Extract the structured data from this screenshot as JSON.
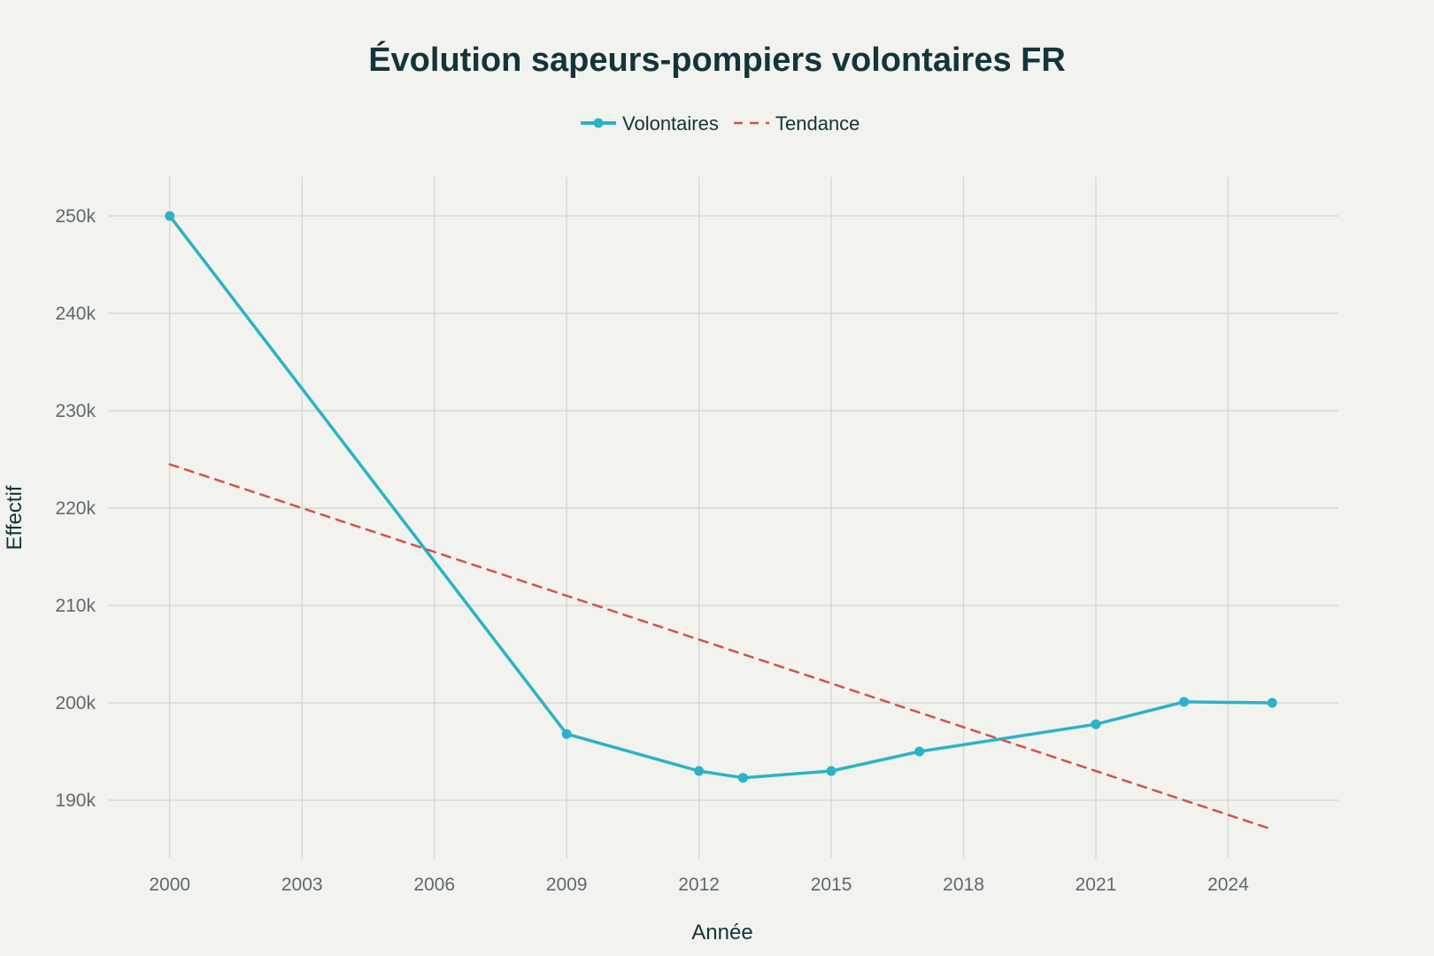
{
  "chart_data": {
    "type": "line",
    "title": "Évolution sapeurs-pompiers volontaires FR",
    "xlabel": "Année",
    "ylabel": "Effectif",
    "xlim": [
      1998.6,
      2026.5
    ],
    "ylim": [
      184,
      254
    ],
    "x_ticks": [
      2000,
      2003,
      2006,
      2009,
      2012,
      2015,
      2018,
      2021,
      2024
    ],
    "y_ticks": [
      190,
      200,
      210,
      220,
      230,
      240,
      250
    ],
    "y_tick_labels": [
      "190k",
      "200k",
      "210k",
      "220k",
      "230k",
      "240k",
      "250k"
    ],
    "grid": true,
    "legend_position": "top-center",
    "series": [
      {
        "name": "Volontaires",
        "style": "solid-markers",
        "color": "#2ab3c6",
        "x": [
          2000,
          2009,
          2012,
          2013,
          2015,
          2017,
          2021,
          2023,
          2025
        ],
        "y": [
          250,
          196.8,
          193,
          192.3,
          193,
          195,
          197.8,
          200.1,
          200
        ]
      },
      {
        "name": "Tendance",
        "style": "dashed",
        "color": "#d4524a",
        "x": [
          2000,
          2025
        ],
        "y": [
          224.5,
          187
        ]
      }
    ]
  }
}
